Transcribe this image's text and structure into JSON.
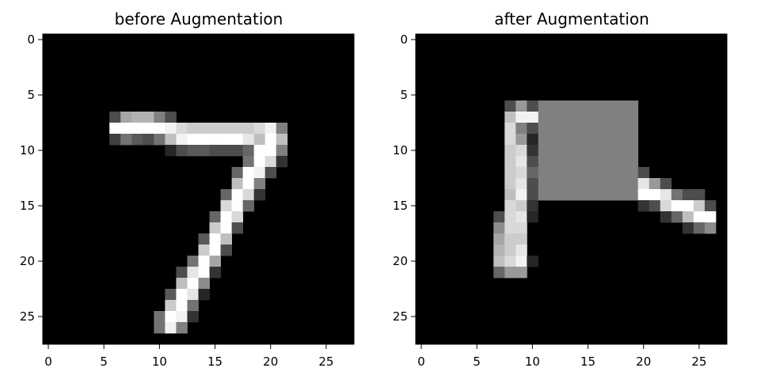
{
  "chart_data": [
    {
      "type": "heatmap",
      "title": "before Augmentation",
      "xlabel": "",
      "ylabel": "",
      "xlim": [
        -0.5,
        27.5
      ],
      "ylim": [
        27.5,
        -0.5
      ],
      "x_ticks": [
        0,
        5,
        10,
        15,
        20,
        25
      ],
      "y_ticks": [
        0,
        5,
        10,
        15,
        20,
        25
      ],
      "colormap": "gray",
      "grid": false,
      "pixels": [
        [
          7,
          6,
          0.3
        ],
        [
          7,
          7,
          0.65
        ],
        [
          7,
          8,
          0.7
        ],
        [
          7,
          9,
          0.7
        ],
        [
          7,
          10,
          0.5
        ],
        [
          7,
          11,
          0.3
        ],
        [
          8,
          6,
          1.0
        ],
        [
          8,
          7,
          1.0
        ],
        [
          8,
          8,
          1.0
        ],
        [
          8,
          9,
          1.0
        ],
        [
          8,
          10,
          1.0
        ],
        [
          8,
          11,
          0.95
        ],
        [
          8,
          12,
          0.85
        ],
        [
          8,
          13,
          0.8
        ],
        [
          8,
          14,
          0.8
        ],
        [
          8,
          15,
          0.8
        ],
        [
          8,
          16,
          0.8
        ],
        [
          8,
          17,
          0.8
        ],
        [
          8,
          18,
          0.8
        ],
        [
          8,
          19,
          0.85
        ],
        [
          8,
          20,
          0.95
        ],
        [
          8,
          21,
          0.5
        ],
        [
          9,
          6,
          0.25
        ],
        [
          9,
          7,
          0.45
        ],
        [
          9,
          8,
          0.35
        ],
        [
          9,
          9,
          0.3
        ],
        [
          9,
          10,
          0.45
        ],
        [
          9,
          11,
          0.75
        ],
        [
          9,
          12,
          0.95
        ],
        [
          9,
          13,
          1.0
        ],
        [
          9,
          14,
          1.0
        ],
        [
          9,
          15,
          1.0
        ],
        [
          9,
          16,
          1.0
        ],
        [
          9,
          17,
          1.0
        ],
        [
          9,
          18,
          0.9
        ],
        [
          9,
          19,
          0.75
        ],
        [
          9,
          20,
          1.0
        ],
        [
          9,
          21,
          0.75
        ],
        [
          10,
          11,
          0.15
        ],
        [
          10,
          12,
          0.3
        ],
        [
          10,
          13,
          0.35
        ],
        [
          10,
          14,
          0.35
        ],
        [
          10,
          15,
          0.3
        ],
        [
          10,
          16,
          0.3
        ],
        [
          10,
          17,
          0.3
        ],
        [
          10,
          18,
          0.4
        ],
        [
          10,
          19,
          1.0
        ],
        [
          10,
          20,
          1.0
        ],
        [
          10,
          21,
          0.5
        ],
        [
          11,
          18,
          0.45
        ],
        [
          11,
          19,
          1.0
        ],
        [
          11,
          20,
          0.85
        ],
        [
          11,
          21,
          0.2
        ],
        [
          12,
          17,
          0.4
        ],
        [
          12,
          18,
          1.0
        ],
        [
          12,
          19,
          0.95
        ],
        [
          12,
          20,
          0.3
        ],
        [
          13,
          17,
          0.75
        ],
        [
          13,
          18,
          1.0
        ],
        [
          13,
          19,
          0.5
        ],
        [
          14,
          16,
          0.4
        ],
        [
          14,
          17,
          1.0
        ],
        [
          14,
          18,
          0.85
        ],
        [
          14,
          19,
          0.2
        ],
        [
          15,
          16,
          0.85
        ],
        [
          15,
          17,
          1.0
        ],
        [
          15,
          18,
          0.4
        ],
        [
          16,
          15,
          0.4
        ],
        [
          16,
          16,
          1.0
        ],
        [
          16,
          17,
          0.85
        ],
        [
          17,
          15,
          0.8
        ],
        [
          17,
          16,
          1.0
        ],
        [
          17,
          17,
          0.3
        ],
        [
          18,
          14,
          0.35
        ],
        [
          18,
          15,
          1.0
        ],
        [
          18,
          16,
          0.75
        ],
        [
          19,
          14,
          0.8
        ],
        [
          19,
          15,
          1.0
        ],
        [
          19,
          16,
          0.3
        ],
        [
          20,
          13,
          0.45
        ],
        [
          20,
          14,
          1.0
        ],
        [
          20,
          15,
          0.65
        ],
        [
          21,
          12,
          0.3
        ],
        [
          21,
          13,
          0.9
        ],
        [
          21,
          14,
          1.0
        ],
        [
          21,
          15,
          0.2
        ],
        [
          22,
          12,
          0.75
        ],
        [
          22,
          13,
          1.0
        ],
        [
          22,
          14,
          0.55
        ],
        [
          23,
          11,
          0.35
        ],
        [
          23,
          12,
          1.0
        ],
        [
          23,
          13,
          0.9
        ],
        [
          23,
          14,
          0.15
        ],
        [
          24,
          11,
          0.8
        ],
        [
          24,
          12,
          1.0
        ],
        [
          24,
          13,
          0.45
        ],
        [
          25,
          10,
          0.45
        ],
        [
          25,
          11,
          1.0
        ],
        [
          25,
          12,
          0.95
        ],
        [
          25,
          13,
          0.2
        ],
        [
          26,
          10,
          0.45
        ],
        [
          26,
          11,
          0.95
        ],
        [
          26,
          12,
          0.5
        ]
      ]
    },
    {
      "type": "heatmap",
      "title": "after Augmentation",
      "xlabel": "",
      "ylabel": "",
      "xlim": [
        -0.5,
        27.5
      ],
      "ylim": [
        27.5,
        -0.5
      ],
      "x_ticks": [
        0,
        5,
        10,
        15,
        20,
        25
      ],
      "y_ticks": [
        0,
        5,
        10,
        15,
        20,
        25
      ],
      "colormap": "gray",
      "grid": false,
      "filled_block": {
        "rows": [
          6,
          14
        ],
        "cols": [
          11,
          19
        ],
        "value": 0.5
      },
      "pixels": [
        [
          6,
          8,
          0.3
        ],
        [
          6,
          9,
          0.6
        ],
        [
          6,
          10,
          0.3
        ],
        [
          7,
          8,
          0.75
        ],
        [
          7,
          9,
          0.95
        ],
        [
          7,
          10,
          0.95
        ],
        [
          8,
          8,
          0.85
        ],
        [
          8,
          9,
          0.5
        ],
        [
          8,
          10,
          0.3
        ],
        [
          9,
          8,
          0.85
        ],
        [
          9,
          9,
          0.6
        ],
        [
          9,
          10,
          0.15
        ],
        [
          10,
          8,
          0.8
        ],
        [
          10,
          9,
          0.85
        ],
        [
          10,
          10,
          0.2
        ],
        [
          11,
          8,
          0.8
        ],
        [
          11,
          9,
          0.9
        ],
        [
          11,
          10,
          0.3
        ],
        [
          12,
          8,
          0.8
        ],
        [
          12,
          9,
          0.85
        ],
        [
          12,
          10,
          0.4
        ],
        [
          12,
          20,
          0.3
        ],
        [
          13,
          8,
          0.8
        ],
        [
          13,
          9,
          0.9
        ],
        [
          13,
          10,
          0.3
        ],
        [
          13,
          20,
          0.9
        ],
        [
          13,
          21,
          0.6
        ],
        [
          13,
          22,
          0.3
        ],
        [
          14,
          8,
          0.75
        ],
        [
          14,
          9,
          0.95
        ],
        [
          14,
          10,
          0.3
        ],
        [
          14,
          20,
          1.0
        ],
        [
          14,
          21,
          1.0
        ],
        [
          14,
          22,
          0.9
        ],
        [
          14,
          23,
          0.45
        ],
        [
          14,
          24,
          0.3
        ],
        [
          14,
          25,
          0.3
        ],
        [
          15,
          8,
          0.85
        ],
        [
          15,
          9,
          0.8
        ],
        [
          15,
          10,
          0.2
        ],
        [
          15,
          20,
          0.2
        ],
        [
          15,
          21,
          0.3
        ],
        [
          15,
          22,
          0.85
        ],
        [
          15,
          23,
          1.0
        ],
        [
          15,
          24,
          1.0
        ],
        [
          15,
          25,
          0.8
        ],
        [
          15,
          26,
          0.3
        ],
        [
          16,
          7,
          0.3
        ],
        [
          16,
          8,
          0.85
        ],
        [
          16,
          9,
          0.9
        ],
        [
          16,
          10,
          0.15
        ],
        [
          16,
          22,
          0.2
        ],
        [
          16,
          23,
          0.4
        ],
        [
          16,
          24,
          0.75
        ],
        [
          16,
          25,
          1.0
        ],
        [
          16,
          26,
          1.0
        ],
        [
          17,
          7,
          0.55
        ],
        [
          17,
          8,
          0.85
        ],
        [
          17,
          9,
          0.85
        ],
        [
          17,
          24,
          0.2
        ],
        [
          17,
          25,
          0.4
        ],
        [
          17,
          26,
          0.55
        ],
        [
          18,
          7,
          0.65
        ],
        [
          18,
          8,
          0.8
        ],
        [
          18,
          9,
          0.8
        ],
        [
          19,
          7,
          0.7
        ],
        [
          19,
          8,
          0.8
        ],
        [
          19,
          9,
          0.9
        ],
        [
          20,
          7,
          0.75
        ],
        [
          20,
          8,
          0.85
        ],
        [
          20,
          9,
          0.95
        ],
        [
          20,
          10,
          0.15
        ],
        [
          21,
          7,
          0.4
        ],
        [
          21,
          8,
          0.6
        ],
        [
          21,
          9,
          0.6
        ]
      ]
    }
  ]
}
